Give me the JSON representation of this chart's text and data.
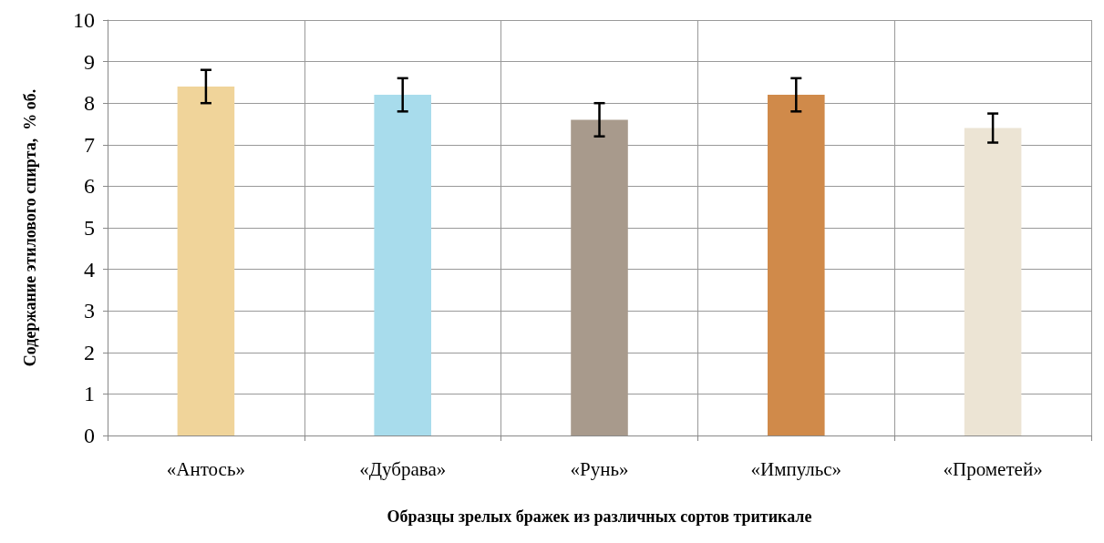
{
  "chart_data": {
    "type": "bar",
    "xlabel": "Образцы зрелых бражек из различных сортов тритикале",
    "ylabel": "Содержание этилового спирта,  % об.",
    "categories": [
      "«Антось»",
      "«Дубрава»",
      "«Рунь»",
      "«Импульс»",
      "«Прометей»"
    ],
    "values": [
      8.4,
      8.2,
      7.6,
      8.2,
      7.4
    ],
    "errors": [
      0.4,
      0.4,
      0.4,
      0.4,
      0.35
    ],
    "colors": [
      "#f0d49a",
      "#a8dcec",
      "#a89a8c",
      "#d08a4a",
      "#ece4d4"
    ],
    "ylim": [
      0,
      10
    ],
    "yticks": [
      0,
      1,
      2,
      3,
      4,
      5,
      6,
      7,
      8,
      9,
      10
    ],
    "grid": true
  }
}
